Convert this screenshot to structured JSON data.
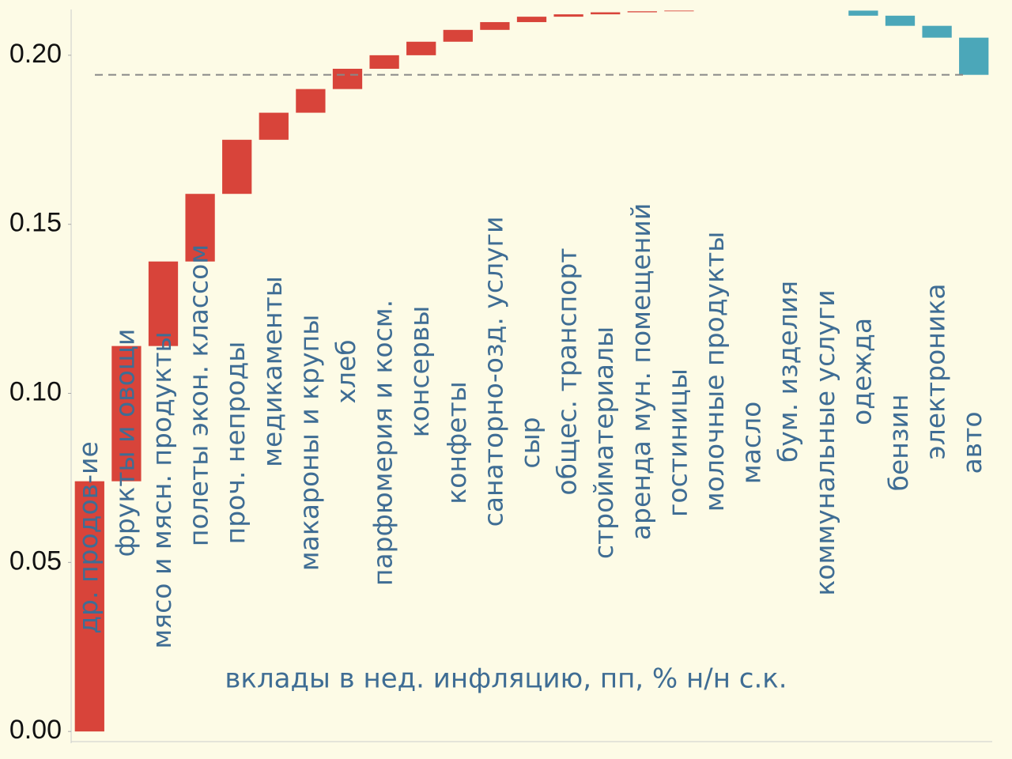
{
  "chart_data": {
    "type": "waterfall",
    "annotation": "вклады в нед. инфляцию, пп, % н/н с.к.",
    "categories": [
      "др. продов-ие",
      "фрукты и овощи",
      "мясо и мясн. продукты",
      "полеты экон. классом",
      "проч. непроды",
      "медикаменты",
      "макароны и крупы",
      "хлеб",
      "парфюмерия и косм.",
      "консервы",
      "конфеты",
      "санаторно-озд. услуги",
      "сыр",
      "общес. транспорт",
      "стройматериалы",
      "аренда мун. помещений",
      "гостиницы",
      "молочные продукты",
      "масло",
      "бум. изделия",
      "коммунальные услуги",
      "одежда",
      "бензин",
      "электроника",
      "авто"
    ],
    "values": [
      0.074,
      0.04,
      0.025,
      0.02,
      0.016,
      0.008,
      0.007,
      0.006,
      0.004,
      0.004,
      0.0035,
      0.0023,
      0.0016,
      0.0007,
      0.0006,
      0.0003,
      0.0002,
      0,
      0,
      0,
      0,
      -0.0015,
      -0.003,
      -0.0035,
      -0.011
    ],
    "increase_color": "#d8443a",
    "decrease_color": "#4ba7b9",
    "label_color": "#3f6d94",
    "total_line": true,
    "ylim": [
      -0.003,
      0.214
    ],
    "yticks": [
      {
        "value": 0,
        "label": "0.00"
      },
      {
        "value": 0.05,
        "label": "0.05"
      },
      {
        "value": 0.1,
        "label": "0.10"
      },
      {
        "value": 0.15,
        "label": "0.15"
      },
      {
        "value": 0.2,
        "label": "0.20"
      }
    ]
  }
}
